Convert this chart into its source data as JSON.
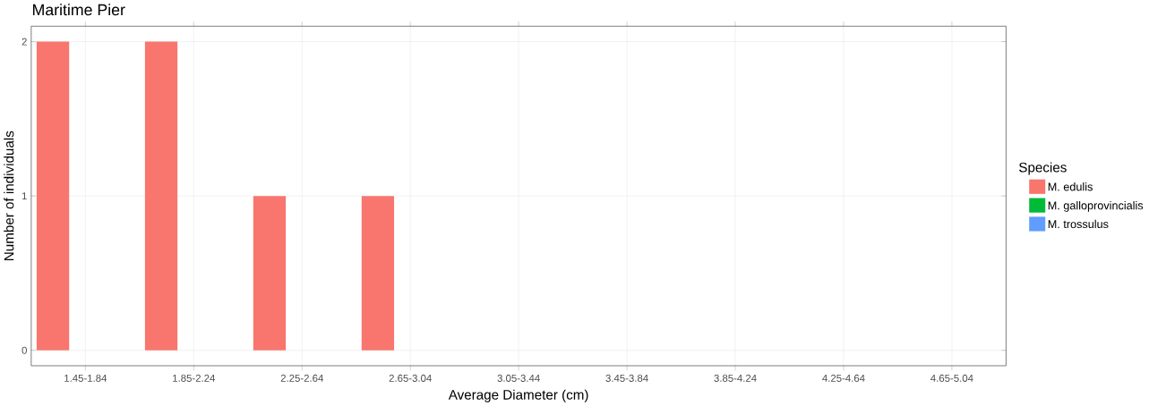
{
  "chart_data": {
    "type": "bar",
    "title": "Maritime Pier",
    "xlabel": "Average Diameter (cm)",
    "ylabel": "Number of individuals",
    "legend_title": "Species",
    "categories": [
      "1.45-1.84",
      "1.85-2.24",
      "2.25-2.64",
      "2.65-3.04",
      "3.05-3.44",
      "3.45-3.84",
      "3.85-4.24",
      "4.25-4.64",
      "4.65-5.04"
    ],
    "series": [
      {
        "name": "M. edulis",
        "color": "#f8766d",
        "values": [
          2,
          2,
          1,
          1,
          0,
          0,
          0,
          0,
          0
        ]
      },
      {
        "name": "M. galloprovincialis",
        "color": "#00ba38",
        "values": [
          0,
          0,
          0,
          0,
          0,
          0,
          0,
          0,
          0
        ]
      },
      {
        "name": "M. trossulus",
        "color": "#619cff",
        "values": [
          0,
          0,
          0,
          0,
          0,
          0,
          0,
          0,
          0
        ]
      }
    ],
    "ylim": [
      -0.1,
      2.1
    ],
    "yticks": [
      0,
      1,
      2
    ],
    "grid": true,
    "legend": "right"
  }
}
